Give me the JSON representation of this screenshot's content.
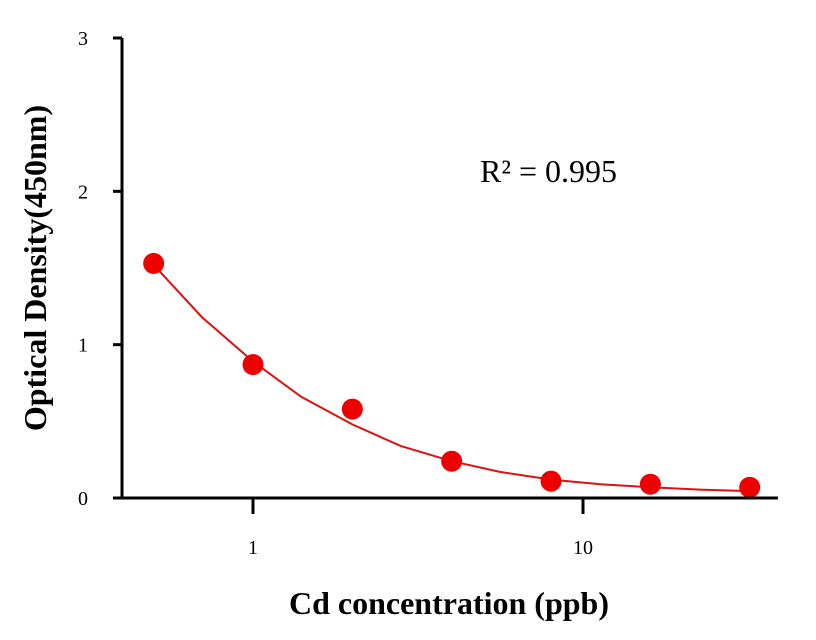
{
  "chart_data": {
    "type": "scatter",
    "xlabel": "Cd concentration (ppb)",
    "ylabel": "Optical Density(450nm)",
    "x_scale": "log",
    "xlim": [
      0.4,
      40
    ],
    "ylim": [
      0,
      3
    ],
    "x_ticks": [
      {
        "value": 1,
        "label": "1"
      },
      {
        "value": 10,
        "label": "10"
      }
    ],
    "y_ticks": [
      {
        "value": 0,
        "label": "0"
      },
      {
        "value": 1,
        "label": "1"
      },
      {
        "value": 2,
        "label": "2"
      },
      {
        "value": 3,
        "label": "3"
      }
    ],
    "series": [
      {
        "color": "#ee0000",
        "points": [
          {
            "x": 0.5,
            "y": 1.53
          },
          {
            "x": 1,
            "y": 0.87
          },
          {
            "x": 2,
            "y": 0.58
          },
          {
            "x": 4,
            "y": 0.24
          },
          {
            "x": 8,
            "y": 0.11
          },
          {
            "x": 16,
            "y": 0.09
          },
          {
            "x": 32,
            "y": 0.07
          }
        ]
      }
    ],
    "fit_curve": {
      "color": "#dd1111",
      "x": [
        0.5,
        0.7,
        1,
        1.4,
        2,
        2.8,
        4,
        5.6,
        8,
        11.3,
        16,
        22.6,
        32
      ],
      "y": [
        1.52,
        1.18,
        0.89,
        0.66,
        0.48,
        0.34,
        0.24,
        0.17,
        0.12,
        0.09,
        0.07,
        0.055,
        0.045
      ]
    },
    "annotation": "R² = 0.995",
    "grid": false,
    "legend": "none"
  }
}
